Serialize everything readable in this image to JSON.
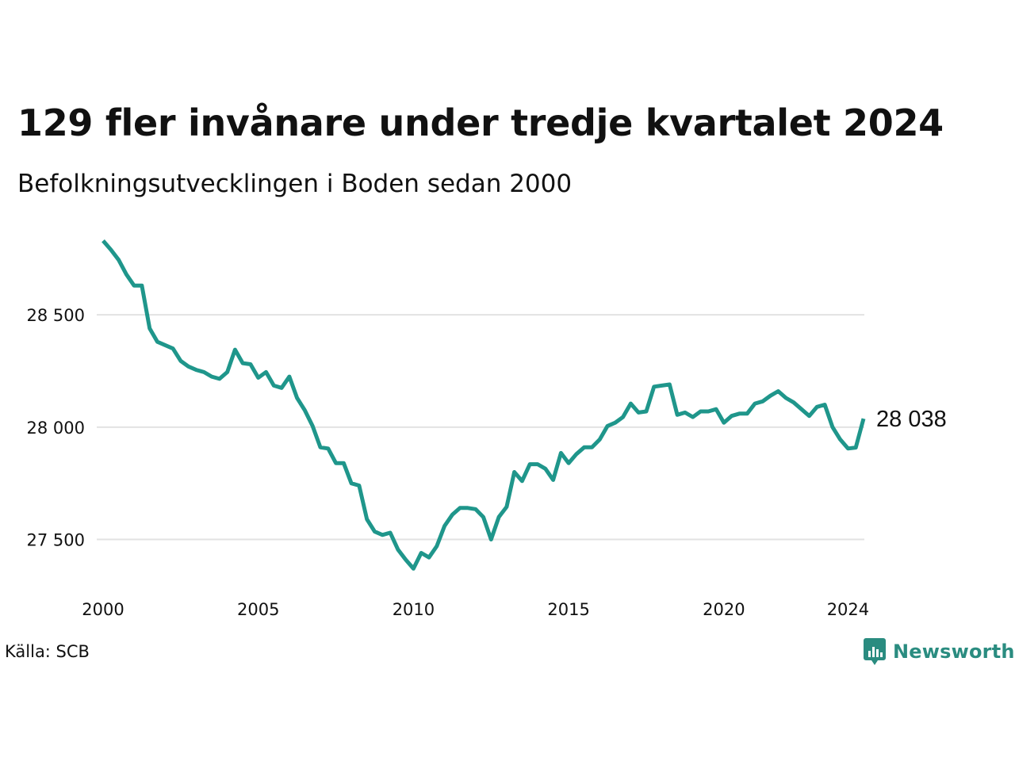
{
  "colors": {
    "line": "#1f968b",
    "grid": "#e2e2e2",
    "brand": "#2a8c80"
  },
  "source_label": "Källa: SCB",
  "brand_name": "Newsworthy",
  "chart_data": {
    "type": "line",
    "title": "129 fler invånare under tredje kvartalet 2024",
    "subtitle": "Befolkningsutvecklingen i Boden sedan 2000",
    "xlabel": "",
    "ylabel": "",
    "x_ticks": [
      2000,
      2005,
      2010,
      2015,
      2020,
      2024
    ],
    "x_tick_labels": [
      "2000",
      "2005",
      "2010",
      "2015",
      "2020",
      "2024"
    ],
    "y_ticks": [
      27500,
      28000,
      28500
    ],
    "y_tick_labels": [
      "27 500",
      "28 000",
      "28 500"
    ],
    "ylim": [
      27350,
      28850
    ],
    "xlim": [
      2000,
      2024.5
    ],
    "grid": true,
    "legend": "none",
    "end_label": "28 038",
    "series": [
      {
        "values": [
          [
            2000.0,
            28830
          ],
          [
            2000.25,
            28790
          ],
          [
            2000.5,
            28745
          ],
          [
            2000.75,
            28680
          ],
          [
            2001.0,
            28630
          ],
          [
            2001.25,
            28630
          ],
          [
            2001.5,
            28440
          ],
          [
            2001.75,
            28380
          ],
          [
            2002.0,
            28365
          ],
          [
            2002.25,
            28350
          ],
          [
            2002.5,
            28295
          ],
          [
            2002.75,
            28270
          ],
          [
            2003.0,
            28255
          ],
          [
            2003.25,
            28245
          ],
          [
            2003.5,
            28225
          ],
          [
            2003.75,
            28215
          ],
          [
            2004.0,
            28245
          ],
          [
            2004.25,
            28345
          ],
          [
            2004.5,
            28285
          ],
          [
            2004.75,
            28280
          ],
          [
            2005.0,
            28220
          ],
          [
            2005.25,
            28245
          ],
          [
            2005.5,
            28185
          ],
          [
            2005.75,
            28175
          ],
          [
            2006.0,
            28225
          ],
          [
            2006.25,
            28130
          ],
          [
            2006.5,
            28075
          ],
          [
            2006.75,
            28005
          ],
          [
            2007.0,
            27910
          ],
          [
            2007.25,
            27905
          ],
          [
            2007.5,
            27840
          ],
          [
            2007.75,
            27840
          ],
          [
            2008.0,
            27750
          ],
          [
            2008.25,
            27740
          ],
          [
            2008.5,
            27590
          ],
          [
            2008.75,
            27535
          ],
          [
            2009.0,
            27520
          ],
          [
            2009.25,
            27530
          ],
          [
            2009.5,
            27455
          ],
          [
            2009.75,
            27410
          ],
          [
            2010.0,
            27370
          ],
          [
            2010.25,
            27440
          ],
          [
            2010.5,
            27420
          ],
          [
            2010.75,
            27470
          ],
          [
            2011.0,
            27560
          ],
          [
            2011.25,
            27610
          ],
          [
            2011.5,
            27640
          ],
          [
            2011.75,
            27640
          ],
          [
            2012.0,
            27635
          ],
          [
            2012.25,
            27600
          ],
          [
            2012.5,
            27500
          ],
          [
            2012.75,
            27600
          ],
          [
            2013.0,
            27645
          ],
          [
            2013.25,
            27800
          ],
          [
            2013.5,
            27760
          ],
          [
            2013.75,
            27835
          ],
          [
            2014.0,
            27835
          ],
          [
            2014.25,
            27815
          ],
          [
            2014.5,
            27765
          ],
          [
            2014.75,
            27885
          ],
          [
            2015.0,
            27840
          ],
          [
            2015.25,
            27880
          ],
          [
            2015.5,
            27910
          ],
          [
            2015.75,
            27910
          ],
          [
            2016.0,
            27945
          ],
          [
            2016.25,
            28005
          ],
          [
            2016.5,
            28020
          ],
          [
            2016.75,
            28045
          ],
          [
            2017.0,
            28105
          ],
          [
            2017.25,
            28065
          ],
          [
            2017.5,
            28070
          ],
          [
            2017.75,
            28180
          ],
          [
            2018.0,
            28185
          ],
          [
            2018.25,
            28190
          ],
          [
            2018.5,
            28055
          ],
          [
            2018.75,
            28065
          ],
          [
            2019.0,
            28045
          ],
          [
            2019.25,
            28070
          ],
          [
            2019.5,
            28070
          ],
          [
            2019.75,
            28080
          ],
          [
            2020.0,
            28020
          ],
          [
            2020.25,
            28050
          ],
          [
            2020.5,
            28060
          ],
          [
            2020.75,
            28060
          ],
          [
            2021.0,
            28105
          ],
          [
            2021.25,
            28115
          ],
          [
            2021.5,
            28140
          ],
          [
            2021.75,
            28160
          ],
          [
            2022.0,
            28130
          ],
          [
            2022.25,
            28110
          ],
          [
            2022.5,
            28080
          ],
          [
            2022.75,
            28050
          ],
          [
            2023.0,
            28090
          ],
          [
            2023.25,
            28100
          ],
          [
            2023.5,
            28000
          ],
          [
            2023.75,
            27945
          ],
          [
            2024.0,
            27905
          ],
          [
            2024.25,
            27909
          ],
          [
            2024.5,
            28038
          ]
        ]
      }
    ]
  }
}
